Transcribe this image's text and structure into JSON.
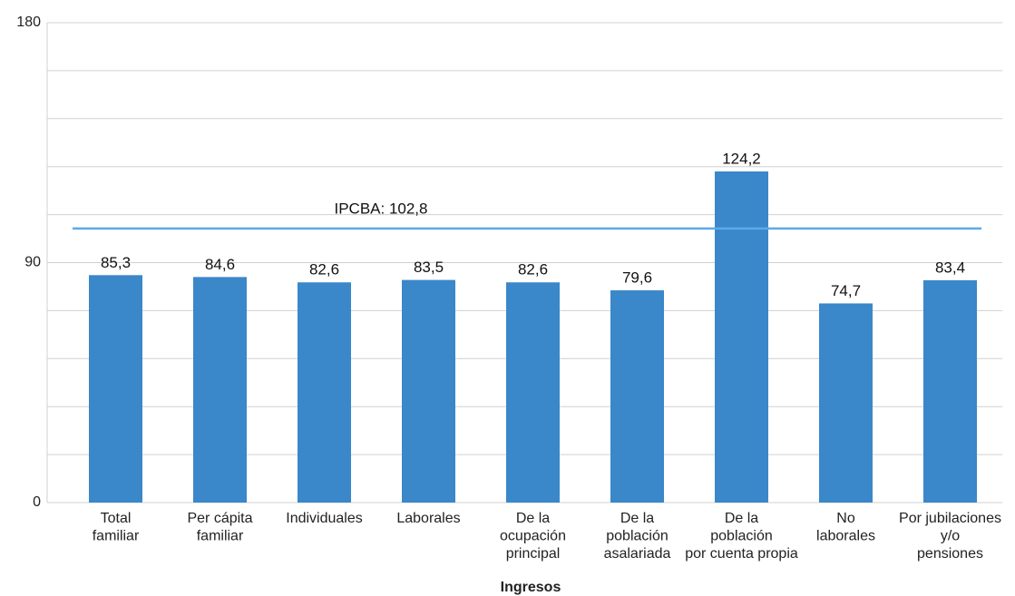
{
  "chart_data": {
    "type": "bar",
    "categories": [
      [
        "Total",
        "familiar"
      ],
      [
        "Per cápita",
        "familiar"
      ],
      [
        "Individuales"
      ],
      [
        "Laborales"
      ],
      [
        "De la",
        "ocupación",
        "principal"
      ],
      [
        "De la",
        "población",
        "asalariada"
      ],
      [
        "De la",
        "población",
        "por cuenta propia"
      ],
      [
        "No",
        "laborales"
      ],
      [
        "Por jubilaciones",
        "y/o",
        "pensiones"
      ]
    ],
    "values": [
      85.3,
      84.6,
      82.6,
      83.5,
      82.6,
      79.6,
      124.2,
      74.7,
      83.4
    ],
    "value_labels": [
      "85,3",
      "84,6",
      "82,6",
      "83,5",
      "82,6",
      "79,6",
      "124,2",
      "74,7",
      "83,4"
    ],
    "color": "#3a87c9",
    "x_label": "Ingresos",
    "ylim": [
      0,
      180
    ],
    "yticks": [
      0,
      90,
      180
    ],
    "grid": true,
    "grid_lines": [
      18,
      36,
      54,
      72,
      108,
      126,
      144,
      162
    ],
    "reference_line": {
      "value": 102.8,
      "label": "IPCBA: 102,8",
      "color": "#5aaae8"
    }
  }
}
